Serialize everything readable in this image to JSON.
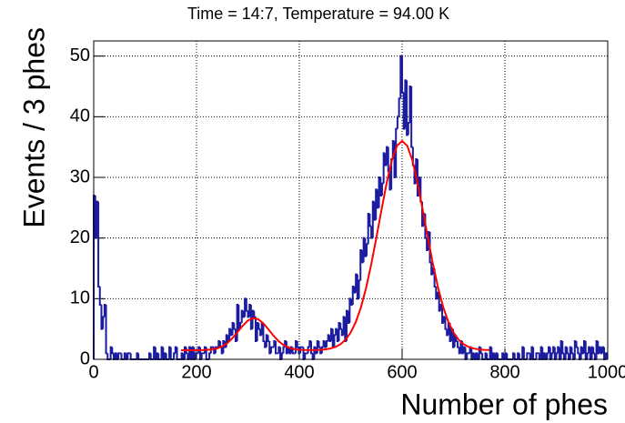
{
  "chart_data": {
    "type": "histogram",
    "title": "Time = 14:7, Temperature = 94.00 K",
    "x_label": "Number of phes",
    "y_label": "Events / 3 phes",
    "color": "#1c1ca0",
    "xlim": [
      0,
      1000
    ],
    "xticks": [
      0,
      200,
      400,
      600,
      800,
      1000
    ],
    "ylim": [
      0,
      52.5
    ],
    "yticks": [
      0,
      10,
      20,
      30,
      40,
      50
    ],
    "grid": true,
    "bins": [
      0,
      3,
      6,
      9,
      12,
      15,
      18,
      21,
      24,
      27,
      30,
      33,
      36,
      39,
      42,
      45,
      48,
      51,
      54,
      57,
      60,
      63,
      66,
      69,
      72,
      75,
      78,
      81,
      84,
      87,
      90,
      93,
      96,
      99,
      102,
      105,
      108,
      111,
      114,
      117,
      120,
      123,
      126,
      129,
      132,
      135,
      138,
      141,
      144,
      147,
      150,
      153,
      156,
      159,
      162,
      165,
      168,
      171,
      174,
      177,
      180,
      183,
      186,
      189,
      192,
      195,
      198,
      201,
      204,
      207,
      210,
      213,
      216,
      219,
      222,
      225,
      228,
      231,
      234,
      237,
      240,
      243,
      246,
      249,
      252,
      255,
      258,
      261,
      264,
      267,
      270,
      273,
      276,
      279,
      282,
      285,
      288,
      291,
      294,
      297,
      300,
      303,
      306,
      309,
      312,
      315,
      318,
      321,
      324,
      327,
      330,
      333,
      336,
      339,
      342,
      345,
      348,
      351,
      354,
      357,
      360,
      363,
      366,
      369,
      372,
      375,
      378,
      381,
      384,
      387,
      390,
      393,
      396,
      399,
      402,
      405,
      408,
      411,
      414,
      417,
      420,
      423,
      426,
      429,
      432,
      435,
      438,
      441,
      444,
      447,
      450,
      453,
      456,
      459,
      462,
      465,
      468,
      471,
      474,
      477,
      480,
      483,
      486,
      489,
      492,
      495,
      498,
      501,
      504,
      507,
      510,
      513,
      516,
      519,
      522,
      525,
      528,
      531,
      534,
      537,
      540,
      543,
      546,
      549,
      552,
      555,
      558,
      561,
      564,
      567,
      570,
      573,
      576,
      579,
      582,
      585,
      588,
      591,
      594,
      597,
      600,
      603,
      606,
      609,
      612,
      615,
      618,
      621,
      624,
      627,
      630,
      633,
      636,
      639,
      642,
      645,
      648,
      651,
      654,
      657,
      660,
      663,
      666,
      669,
      672,
      675,
      678,
      681,
      684,
      687,
      690,
      693,
      696,
      699,
      702,
      705,
      708,
      711,
      714,
      717,
      720,
      723,
      726,
      729,
      732,
      735,
      738,
      741,
      744,
      747,
      750,
      753,
      756,
      759,
      762,
      765,
      768,
      771,
      774,
      777,
      780,
      783,
      786,
      789,
      792,
      795,
      798,
      801,
      804,
      807,
      810,
      813,
      816,
      819,
      822,
      825,
      828,
      831,
      834,
      837,
      840,
      843,
      846,
      849,
      852,
      855,
      858,
      861,
      864,
      867,
      870,
      873,
      876,
      879,
      882,
      885,
      888,
      891,
      894,
      897,
      900,
      903,
      906,
      909,
      912,
      915,
      918,
      921,
      924,
      927,
      930,
      933,
      936,
      939,
      942,
      945,
      948,
      951,
      954,
      957,
      960,
      963,
      966,
      969,
      972,
      975,
      978,
      981,
      984,
      987,
      990,
      993,
      996,
      999
    ],
    "values": [
      27,
      20,
      26,
      12,
      9,
      5,
      7,
      9,
      1,
      0,
      0,
      2,
      1,
      0,
      1,
      0,
      1,
      1,
      0,
      0,
      1,
      0,
      1,
      1,
      0,
      0,
      0,
      0,
      1,
      0,
      0,
      0,
      0,
      0,
      0,
      0,
      1,
      0,
      0,
      2,
      0,
      1,
      0,
      0,
      2,
      0,
      1,
      0,
      0,
      2,
      0,
      0,
      1,
      2,
      0,
      0,
      0,
      1,
      0,
      2,
      1,
      0,
      2,
      0,
      2,
      0,
      1,
      1,
      2,
      0,
      1,
      1,
      2,
      0,
      0,
      1,
      2,
      2,
      1,
      2,
      2,
      3,
      2,
      1,
      3,
      2,
      4,
      3,
      5,
      4,
      6,
      5,
      3,
      9,
      5,
      6,
      8,
      7,
      10,
      8,
      7,
      9,
      5,
      8,
      7,
      3,
      6,
      5,
      4,
      6,
      3,
      2,
      4,
      3,
      1,
      2,
      2,
      3,
      1,
      1,
      2,
      0,
      1,
      2,
      3,
      1,
      2,
      1,
      2,
      1,
      1,
      3,
      2,
      1,
      2,
      2,
      0,
      1,
      1,
      2,
      3,
      1,
      0,
      2,
      1,
      3,
      2,
      1,
      2,
      3,
      2,
      3,
      4,
      3,
      5,
      2,
      4,
      5,
      3,
      6,
      5,
      4,
      7,
      3,
      8,
      6,
      10,
      9,
      12,
      11,
      14,
      10,
      13,
      18,
      16,
      20,
      17,
      19,
      24,
      22,
      20,
      26,
      23,
      28,
      25,
      30,
      27,
      29,
      34,
      32,
      35,
      31,
      28,
      33,
      36,
      30,
      38,
      40,
      43,
      50,
      44,
      38,
      46,
      37,
      39,
      45,
      35,
      32,
      29,
      33,
      27,
      30,
      26,
      22,
      24,
      20,
      18,
      21,
      16,
      14,
      15,
      12,
      10,
      11,
      8,
      9,
      6,
      7,
      5,
      4,
      6,
      3,
      5,
      2,
      4,
      3,
      2,
      1,
      3,
      1,
      2,
      0,
      1,
      1,
      2,
      0,
      1,
      0,
      1,
      0,
      2,
      1,
      0,
      0,
      1,
      0,
      0,
      2,
      0,
      1,
      0,
      1,
      0,
      0,
      0,
      1,
      0,
      1,
      0,
      0,
      0,
      0,
      1,
      0,
      0,
      1,
      0,
      0,
      2,
      0,
      0,
      1,
      1,
      0,
      2,
      0,
      0,
      1,
      1,
      0,
      2,
      0,
      1,
      0,
      1,
      2,
      0,
      1,
      2,
      0,
      1,
      2,
      0,
      3,
      1,
      0,
      2,
      1,
      0,
      2,
      1,
      0,
      3,
      2,
      1,
      0,
      2,
      1,
      3,
      0,
      1,
      2,
      0,
      2,
      1,
      0,
      3,
      1,
      2,
      1,
      2,
      0,
      1
    ],
    "fit": {
      "color": "#ff0000",
      "x": [
        170,
        180,
        190,
        200,
        210,
        220,
        230,
        240,
        250,
        260,
        270,
        280,
        290,
        300,
        310,
        320,
        330,
        340,
        350,
        360,
        370,
        380,
        390,
        400,
        410,
        420,
        430,
        440,
        450,
        460,
        470,
        480,
        490,
        500,
        510,
        520,
        530,
        540,
        550,
        560,
        570,
        580,
        590,
        600,
        610,
        620,
        630,
        640,
        650,
        660,
        670,
        680,
        690,
        700,
        710,
        720,
        730,
        740,
        750,
        760,
        770
      ],
      "values": [
        1.5,
        1.5,
        1.5,
        1.5,
        1.52,
        1.55,
        1.63,
        1.8,
        2.12,
        2.68,
        3.49,
        4.5,
        5.55,
        6.39,
        6.79,
        6.61,
        5.93,
        4.93,
        3.88,
        2.97,
        2.32,
        1.91,
        1.68,
        1.57,
        1.53,
        1.52,
        1.53,
        1.56,
        1.63,
        1.77,
        2.03,
        2.48,
        3.23,
        4.42,
        6.17,
        8.6,
        11.8,
        15.7,
        20.1,
        24.7,
        29.1,
        32.8,
        35.2,
        36.0,
        35.2,
        32.8,
        29.1,
        24.7,
        20.1,
        15.7,
        11.8,
        8.6,
        6.17,
        4.42,
        3.23,
        2.48,
        2.03,
        1.77,
        1.63,
        1.56,
        1.53
      ]
    }
  }
}
